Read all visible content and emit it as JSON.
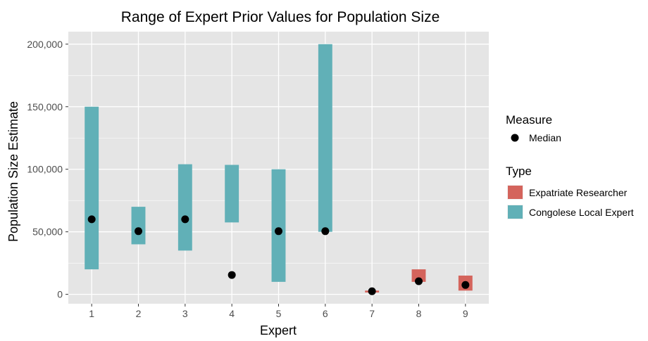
{
  "chart_data": {
    "type": "range-bar",
    "title": "Range of Expert Prior Values for Population Size",
    "xlabel": "Expert",
    "ylabel": "Population Size Estimate",
    "categories": [
      "1",
      "2",
      "3",
      "4",
      "5",
      "6",
      "7",
      "8",
      "9"
    ],
    "ylim": [
      -7500,
      210000
    ],
    "yticks": [
      0,
      50000,
      100000,
      150000,
      200000
    ],
    "ytick_labels": [
      "0",
      "50,000",
      "100,000",
      "150,000",
      "200,000"
    ],
    "grid": true,
    "ranges": [
      {
        "expert": "1",
        "low": 20000,
        "high": 150000,
        "type": "Congolese Local Expert"
      },
      {
        "expert": "2",
        "low": 40000,
        "high": 70000,
        "type": "Congolese Local Expert"
      },
      {
        "expert": "3",
        "low": 35000,
        "high": 104000,
        "type": "Congolese Local Expert"
      },
      {
        "expert": "4",
        "low": 57500,
        "high": 103500,
        "type": "Congolese Local Expert"
      },
      {
        "expert": "5",
        "low": 10000,
        "high": 100000,
        "type": "Congolese Local Expert"
      },
      {
        "expert": "6",
        "low": 50000,
        "high": 200000,
        "type": "Congolese Local Expert"
      },
      {
        "expert": "7",
        "low": 1500,
        "high": 3000,
        "type": "Expatriate Researcher"
      },
      {
        "expert": "8",
        "low": 10000,
        "high": 20000,
        "type": "Expatriate Researcher"
      },
      {
        "expert": "9",
        "low": 3000,
        "high": 15000,
        "type": "Expatriate Researcher"
      }
    ],
    "medians": [
      60000,
      50500,
      60000,
      15500,
      50500,
      50500,
      2500,
      10500,
      7500
    ],
    "legend_placement": "right",
    "legend": {
      "measure_title": "Measure",
      "measure_items": [
        "Median"
      ],
      "type_title": "Type",
      "type_items": [
        {
          "label": "Expatriate Researcher",
          "color": "#d4645c"
        },
        {
          "label": "Congolese Local Expert",
          "color": "#61b0b7"
        }
      ]
    },
    "colors": {
      "panel": "#e5e5e5",
      "grid": "#ffffff",
      "median": "#000000",
      "Expatriate Researcher": "#d4645c",
      "Congolese Local Expert": "#61b0b7"
    }
  }
}
